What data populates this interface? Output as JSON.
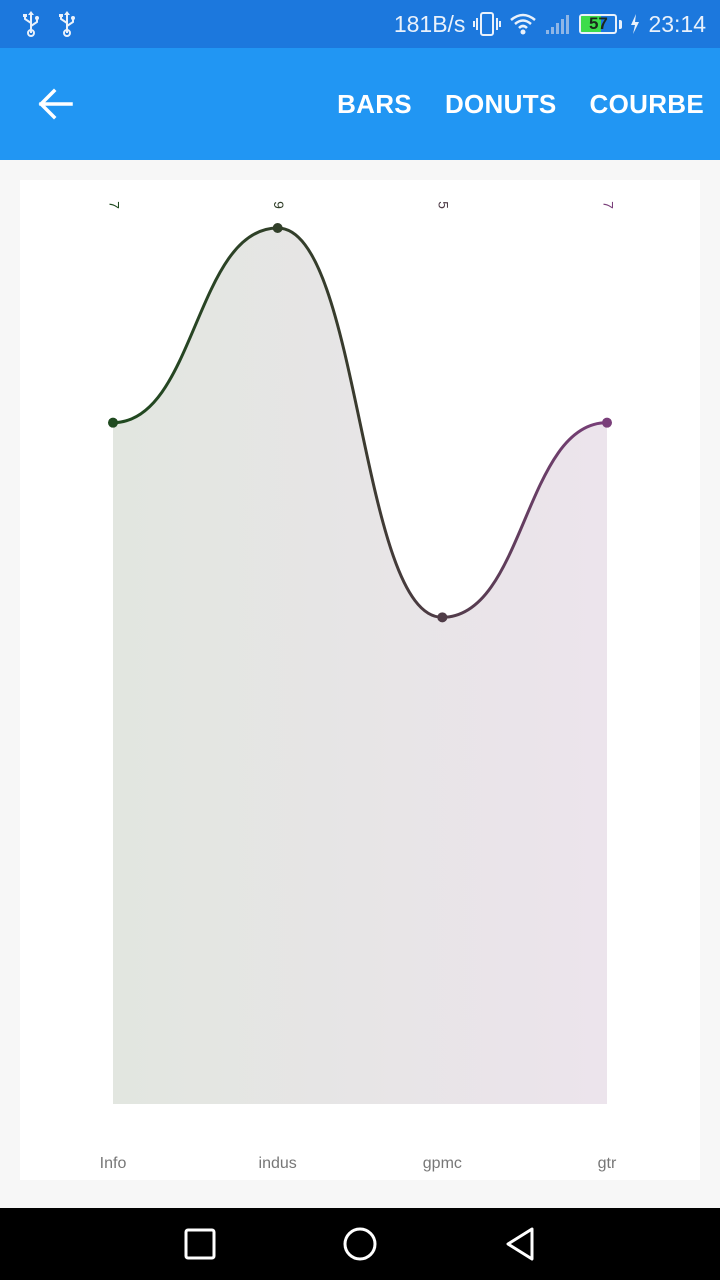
{
  "status_bar": {
    "network_speed": "181B/s",
    "battery_level": "57",
    "battery_fraction": 0.57,
    "time": "23:14",
    "icons": [
      "usb-icon",
      "usb-icon",
      "vibrate-icon",
      "wifi-icon",
      "signal-icon",
      "battery-icon",
      "charging-icon"
    ]
  },
  "app_bar": {
    "back_icon": "arrow-left-icon",
    "menu": [
      "BARS",
      "DONUTS",
      "COURBE"
    ]
  },
  "chart_data": {
    "type": "area",
    "categories": [
      "Info",
      "indus",
      "gpmc",
      "gtr"
    ],
    "values": [
      7,
      9,
      5,
      7
    ],
    "value_labels": [
      "7",
      "9",
      "5",
      "7"
    ],
    "ylim": [
      0,
      9
    ],
    "colors": {
      "start": "#1f4a1f",
      "mid": "#3a3a2e",
      "end": "#7a3f7a",
      "fill_start": "#e2e6e0",
      "fill_end": "#ece4ec"
    },
    "grid": false,
    "legend": "none"
  },
  "nav_bar": {
    "icons": [
      "recent-apps-icon",
      "home-icon",
      "back-icon"
    ]
  }
}
